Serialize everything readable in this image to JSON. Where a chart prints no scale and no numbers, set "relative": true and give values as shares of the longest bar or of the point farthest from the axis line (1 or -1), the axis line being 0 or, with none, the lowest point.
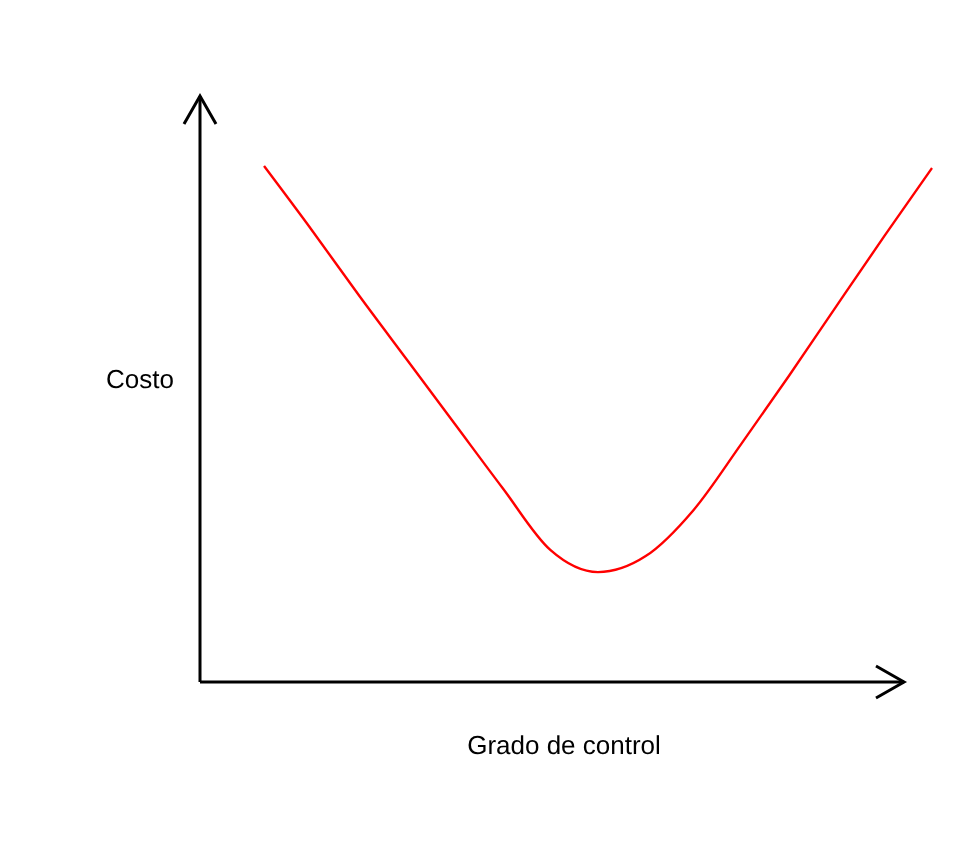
{
  "chart_data": {
    "type": "line",
    "relative": true,
    "xlabel": "Grado de control",
    "ylabel": "Costo",
    "categories": [
      null,
      null,
      null,
      null,
      null,
      null,
      null,
      null,
      null,
      null,
      null,
      null,
      null,
      null,
      null
    ],
    "series": [
      {
        "color": "#ff0000",
        "values": [
          1,
          0.876,
          0.748,
          0.624,
          0.5,
          0.376,
          0.256,
          0.213,
          0.244,
          0.333,
          0.461,
          0.593,
          0.729,
          0.864,
          0.996
        ]
      }
    ],
    "marker": "none",
    "line_style": "solid"
  }
}
